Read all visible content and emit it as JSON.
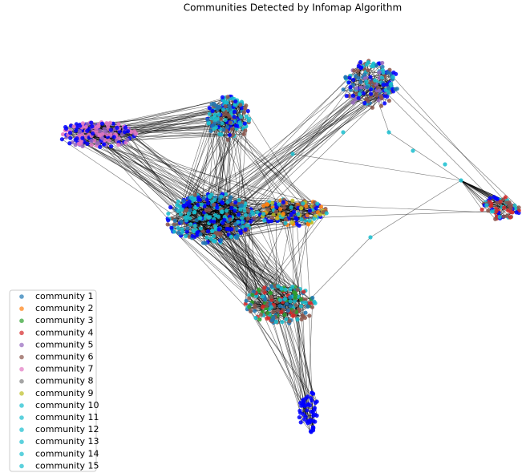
{
  "title": "Communities Detected by Infomap Algorithm",
  "legend": {
    "items": [
      {
        "label": "community 1",
        "color": "#1f77b4"
      },
      {
        "label": "community 2",
        "color": "#ff7f0e"
      },
      {
        "label": "community 3",
        "color": "#2ca02c"
      },
      {
        "label": "community 4",
        "color": "#d62728"
      },
      {
        "label": "community 5",
        "color": "#9467bd"
      },
      {
        "label": "community 6",
        "color": "#8c564b"
      },
      {
        "label": "community 7",
        "color": "#e377c2"
      },
      {
        "label": "community 8",
        "color": "#7f7f7f"
      },
      {
        "label": "community 9",
        "color": "#bcbd22"
      },
      {
        "label": "community 10",
        "color": "#17becf"
      },
      {
        "label": "community 11",
        "color": "#17becf"
      },
      {
        "label": "community 12",
        "color": "#17becf"
      },
      {
        "label": "community 13",
        "color": "#17becf"
      },
      {
        "label": "community 14",
        "color": "#17becf"
      },
      {
        "label": "community 15",
        "color": "#17becf"
      }
    ]
  }
}
